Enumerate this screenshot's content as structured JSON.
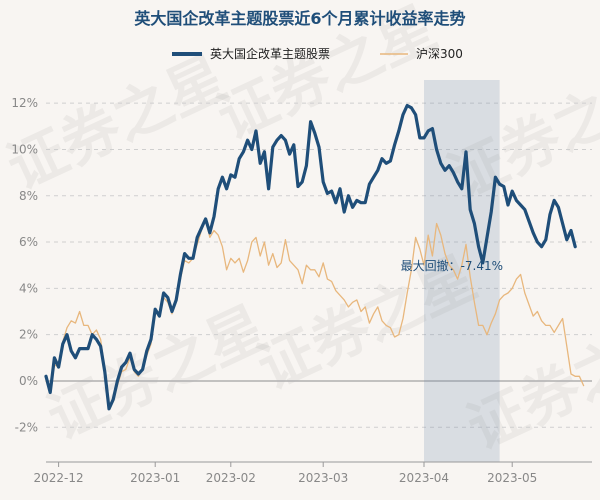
{
  "chart_data": {
    "type": "line",
    "title": "英大国企改革主题股票近6个月累计收益率走势",
    "ylim": [
      -3.5,
      13
    ],
    "yticks": [
      -2,
      0,
      2,
      4,
      6,
      8,
      10,
      12
    ],
    "ytick_labels": [
      "-2%",
      "0%",
      "2%",
      "4%",
      "6%",
      "8%",
      "10%",
      "12%"
    ],
    "x_range": [
      0,
      130
    ],
    "xticks": [
      {
        "label": "2022-12",
        "x": 3
      },
      {
        "label": "2023-01",
        "x": 26
      },
      {
        "label": "2023-02",
        "x": 44
      },
      {
        "label": "2023-03",
        "x": 66
      },
      {
        "label": "2023-04",
        "x": 90
      },
      {
        "label": "2023-05",
        "x": 111
      }
    ],
    "drawdown": {
      "x_start": 90,
      "x_end": 108,
      "label": "最大回撤：-7.41%"
    },
    "series": [
      {
        "name": "英大国企改革主题股票",
        "color": "#1f4e79",
        "values": [
          0.2,
          -0.5,
          1.0,
          0.6,
          1.6,
          2.0,
          1.3,
          1.0,
          1.4,
          1.4,
          1.4,
          2.0,
          1.8,
          1.5,
          0.4,
          -1.2,
          -0.8,
          0.0,
          0.6,
          0.8,
          1.2,
          0.5,
          0.3,
          0.5,
          1.3,
          1.8,
          3.1,
          2.8,
          3.8,
          3.6,
          3.0,
          3.5,
          4.6,
          5.5,
          5.3,
          5.3,
          6.2,
          6.6,
          7.0,
          6.4,
          7.1,
          8.3,
          8.8,
          8.3,
          8.9,
          8.8,
          9.6,
          9.9,
          10.4,
          10.0,
          10.8,
          9.4,
          9.9,
          8.3,
          10.1,
          10.4,
          10.6,
          10.4,
          9.8,
          10.2,
          8.4,
          8.6,
          9.3,
          11.2,
          10.7,
          10.1,
          8.6,
          8.1,
          8.2,
          7.7,
          8.3,
          7.3,
          8.0,
          7.5,
          7.8,
          7.7,
          7.7,
          8.5,
          8.8,
          9.1,
          9.6,
          9.4,
          9.5,
          10.2,
          10.8,
          11.5,
          11.9,
          11.8,
          11.5,
          10.5,
          10.5,
          10.8,
          10.9,
          10.0,
          9.4,
          9.1,
          9.3,
          9.0,
          8.6,
          8.3,
          9.9,
          7.4,
          6.8,
          5.8,
          5.1,
          6.2,
          7.3,
          8.8,
          8.5,
          8.4,
          7.6,
          8.2,
          7.8,
          7.6,
          7.4,
          6.9,
          6.4,
          6.0,
          5.8,
          6.1,
          7.2,
          7.8,
          7.5,
          6.8,
          6.1,
          6.5,
          5.8
        ]
      },
      {
        "name": "沪深300",
        "color": "#e8b77d",
        "values": [
          0.0,
          -0.3,
          0.7,
          0.6,
          1.7,
          2.3,
          2.6,
          2.5,
          3.0,
          2.4,
          2.4,
          2.0,
          2.2,
          1.8,
          0.5,
          -1.0,
          -0.9,
          -0.2,
          0.4,
          0.5,
          1.0,
          0.4,
          0.2,
          0.5,
          1.1,
          1.6,
          3.0,
          2.8,
          3.6,
          3.4,
          2.9,
          3.5,
          4.4,
          5.2,
          5.1,
          5.3,
          5.9,
          6.5,
          7.0,
          6.2,
          6.5,
          6.3,
          5.8,
          4.8,
          5.3,
          5.1,
          5.3,
          4.7,
          5.2,
          6.0,
          6.2,
          5.4,
          6.0,
          5.0,
          5.5,
          4.9,
          5.1,
          6.1,
          5.2,
          5.0,
          4.8,
          4.2,
          5.0,
          4.8,
          4.8,
          4.5,
          5.1,
          4.4,
          4.3,
          3.9,
          3.7,
          3.5,
          3.2,
          3.4,
          3.5,
          3.0,
          3.2,
          2.5,
          2.9,
          3.2,
          2.6,
          2.4,
          2.3,
          1.9,
          2.0,
          2.7,
          3.8,
          4.8,
          6.2,
          5.7,
          5.0,
          6.3,
          5.4,
          6.8,
          6.3,
          5.5,
          5.0,
          4.8,
          4.4,
          5.0,
          5.9,
          4.5,
          3.4,
          2.4,
          2.4,
          2.0,
          2.5,
          2.9,
          3.5,
          3.7,
          3.8,
          4.0,
          4.4,
          4.6,
          3.8,
          3.3,
          2.8,
          3.0,
          2.6,
          2.4,
          2.4,
          2.1,
          2.4,
          2.7,
          1.5,
          0.3,
          0.2,
          0.2,
          -0.2
        ]
      }
    ]
  }
}
